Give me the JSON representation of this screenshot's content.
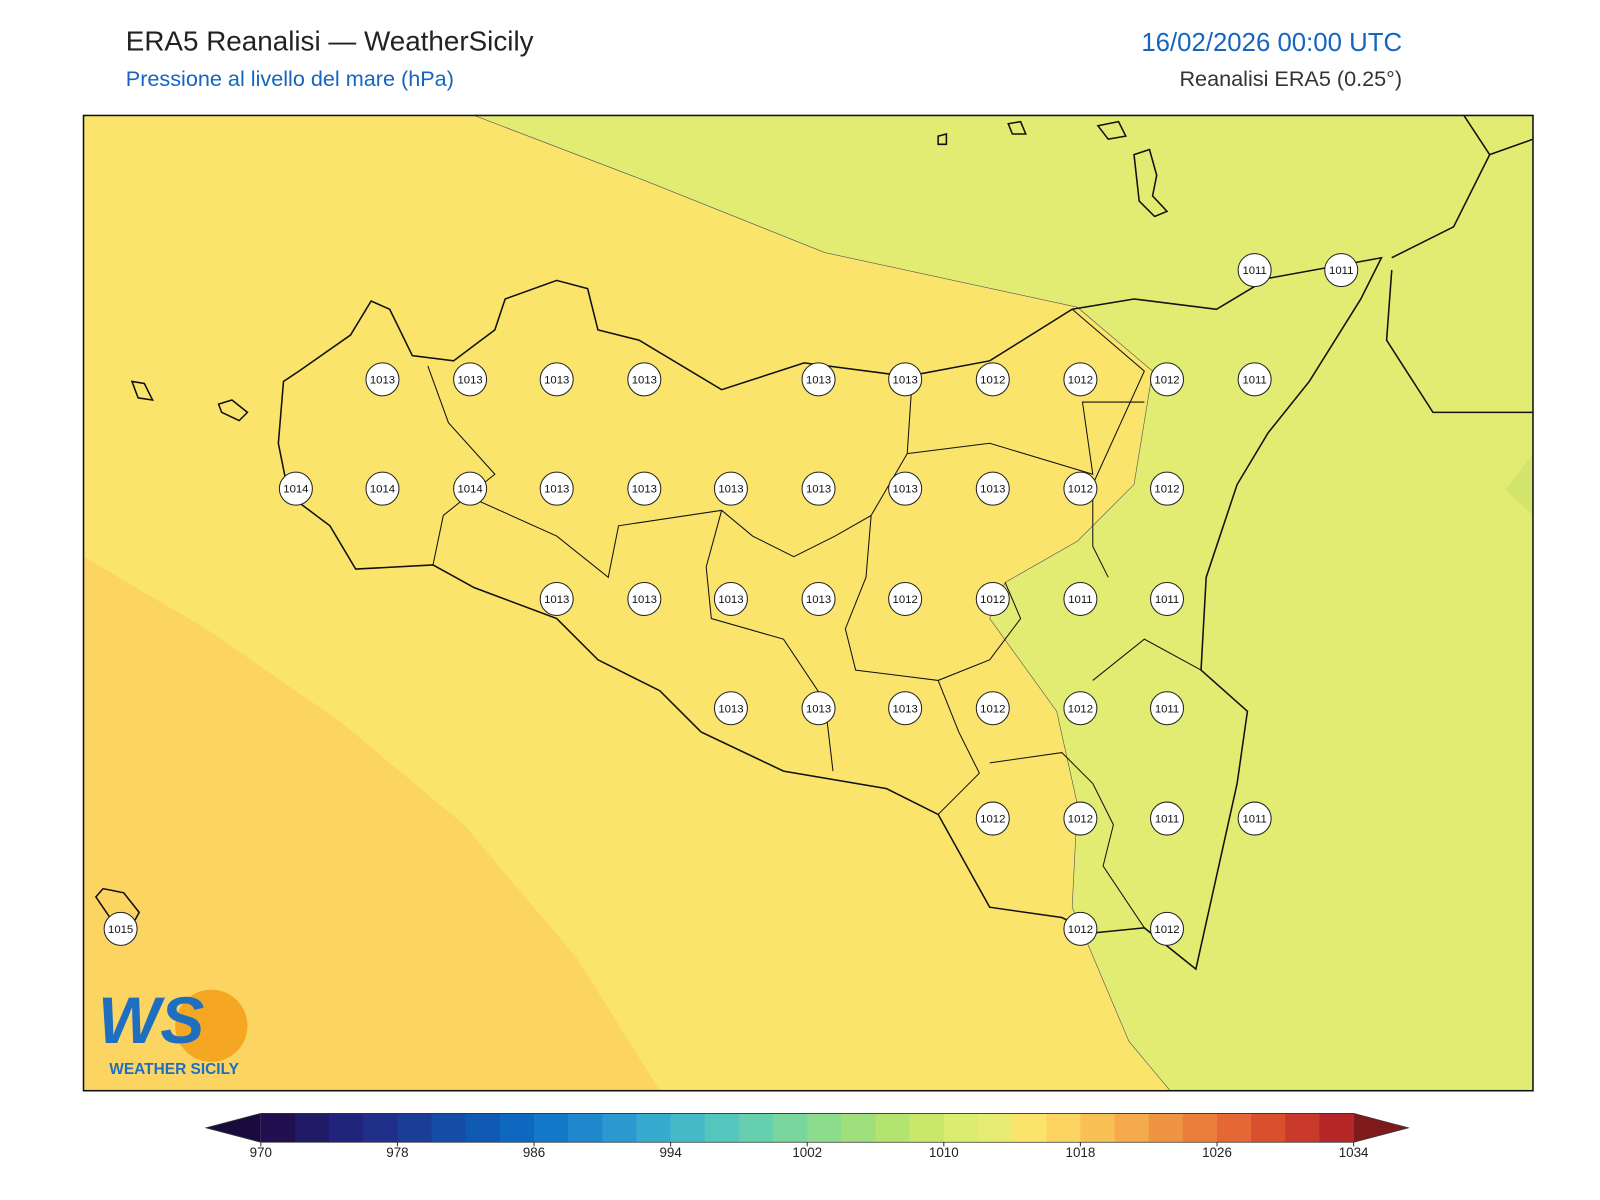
{
  "header": {
    "title": "ERA5 Reanalisi — WeatherSicily",
    "subtitle": "Pressione al livello del mare (hPa)",
    "datetime": "16/02/2026 00:00 UTC",
    "source": "Reanalisi ERA5 (0.25°)"
  },
  "stations": [
    1011,
    1011,
    1013,
    1013,
    1013,
    1013,
    1013,
    1013,
    1012,
    1012,
    1012,
    1011,
    1014,
    1014,
    1014,
    1013,
    1013,
    1013,
    1013,
    1013,
    1013,
    1012,
    1012,
    1013,
    1013,
    1013,
    1013,
    1012,
    1012,
    1011,
    1011,
    1013,
    1013,
    1013,
    1012,
    1012,
    1011,
    1012,
    1012,
    1011,
    1011,
    1015,
    1012,
    1012
  ],
  "colorbar": {
    "ticks": [
      970,
      978,
      986,
      994,
      1002,
      1010,
      1018,
      1026,
      1034
    ],
    "colors": [
      "#20104f",
      "#211a66",
      "#22237a",
      "#1f2f8a",
      "#1a3d98",
      "#154ca6",
      "#1059b3",
      "#0f68c0",
      "#1478c8",
      "#1f88cc",
      "#2b98d0",
      "#37aacf",
      "#45bac8",
      "#55c6bd",
      "#66cfae",
      "#78d69e",
      "#8bdc8c",
      "#9fe07c",
      "#b3e46f",
      "#c8e86c",
      "#dcec70",
      "#e6ec72",
      "#fbe46c",
      "#fcd461",
      "#f9c155",
      "#f5ab4c",
      "#f09443",
      "#eb7e3b",
      "#e46734",
      "#d9502e",
      "#c93a2a",
      "#b52626"
    ],
    "under": "#1a0b3e",
    "over": "#7e1a1a"
  },
  "logo": {
    "mark": "WS",
    "name": "WEATHER SICILY"
  }
}
